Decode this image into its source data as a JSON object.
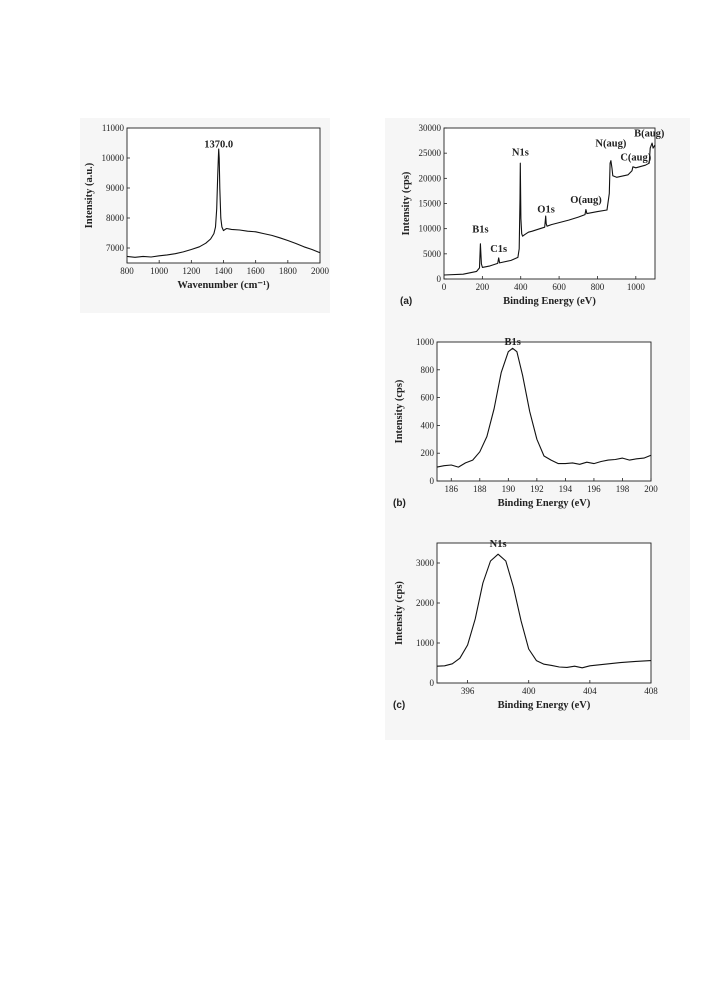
{
  "chart_data": [
    {
      "id": "raman",
      "type": "line",
      "title": "",
      "panel_label": "",
      "xlabel": "Wavenumber (cm⁻¹)",
      "ylabel": "Intensity (a.u.)",
      "xlim": [
        800,
        2000
      ],
      "ylim": [
        6500,
        11000
      ],
      "xticks": [
        800,
        1000,
        1200,
        1400,
        1600,
        1800,
        2000
      ],
      "yticks": [
        7000,
        8000,
        9000,
        10000,
        11000
      ],
      "grid": false,
      "annotations": [
        {
          "text": "1370.0",
          "x": 1370,
          "y": 10350
        }
      ],
      "series": [
        {
          "x": [
            800,
            850,
            900,
            950,
            1000,
            1050,
            1100,
            1150,
            1200,
            1250,
            1290,
            1320,
            1340,
            1350,
            1358,
            1364,
            1368,
            1370,
            1373,
            1377,
            1383,
            1390,
            1400,
            1410,
            1420,
            1450,
            1500,
            1550,
            1600,
            1650,
            1700,
            1750,
            1800,
            1850,
            1900,
            1950,
            2000
          ],
          "y": [
            6720,
            6690,
            6720,
            6700,
            6740,
            6770,
            6810,
            6870,
            6950,
            7040,
            7160,
            7300,
            7480,
            7700,
            8300,
            9400,
            10050,
            10300,
            10000,
            9000,
            8000,
            7700,
            7580,
            7620,
            7650,
            7620,
            7600,
            7560,
            7540,
            7480,
            7420,
            7340,
            7250,
            7150,
            7040,
            6950,
            6840
          ]
        }
      ]
    },
    {
      "id": "xps-survey",
      "type": "line",
      "title": "",
      "panel_label": "(a)",
      "xlabel": "Binding Energy (eV)",
      "ylabel": "Intensity (cps)",
      "xlim": [
        0,
        1100
      ],
      "ylim": [
        0,
        30000
      ],
      "xticks": [
        0,
        200,
        400,
        600,
        800,
        1000
      ],
      "yticks": [
        0,
        5000,
        10000,
        15000,
        20000,
        25000,
        30000
      ],
      "grid": false,
      "annotations": [
        {
          "text": "B1s",
          "x": 190,
          "y": 9200
        },
        {
          "text": "C1s",
          "x": 285,
          "y": 5400
        },
        {
          "text": "N1s",
          "x": 398,
          "y": 24500
        },
        {
          "text": "O1s",
          "x": 532,
          "y": 13200
        },
        {
          "text": "O(aug)",
          "x": 740,
          "y": 15100
        },
        {
          "text": "N(aug)",
          "x": 870,
          "y": 26300
        },
        {
          "text": "C(aug)",
          "x": 1000,
          "y": 23500
        },
        {
          "text": "B(aug)",
          "x": 1070,
          "y": 28300
        }
      ],
      "series": [
        {
          "x": [
            0,
            100,
            170,
            185,
            190,
            195,
            200,
            240,
            280,
            285,
            290,
            350,
            385,
            392,
            396,
            398,
            401,
            405,
            410,
            420,
            440,
            460,
            500,
            525,
            530,
            533,
            537,
            560,
            600,
            650,
            700,
            735,
            740,
            745,
            800,
            850,
            862,
            866,
            870,
            876,
            880,
            900,
            960,
            980,
            985,
            1000,
            1050,
            1070,
            1075,
            1085,
            1090,
            1100
          ],
          "y": [
            800,
            950,
            1500,
            2200,
            7000,
            3000,
            2300,
            2600,
            3100,
            4200,
            3200,
            3700,
            4300,
            6000,
            16000,
            23000,
            12000,
            9000,
            8500,
            8800,
            9300,
            9500,
            10000,
            10300,
            12500,
            11000,
            10500,
            10800,
            11200,
            11700,
            12300,
            12800,
            13800,
            13000,
            13400,
            13700,
            17000,
            23000,
            23500,
            22000,
            20500,
            20200,
            20700,
            21500,
            22300,
            22100,
            22600,
            23000,
            26000,
            27000,
            26000,
            26600
          ]
        }
      ]
    },
    {
      "id": "xps-b1s",
      "type": "line",
      "title": "",
      "panel_label": "(b)",
      "xlabel": "Binding Energy (eV)",
      "ylabel": "Intensity (cps)",
      "xlim": [
        185,
        200
      ],
      "ylim": [
        0,
        1000
      ],
      "xticks": [
        186,
        188,
        190,
        192,
        194,
        196,
        198,
        200
      ],
      "yticks": [
        0,
        200,
        400,
        600,
        800,
        1000
      ],
      "grid": false,
      "annotations": [
        {
          "text": "B1s",
          "x": 190.3,
          "y": 980
        }
      ],
      "series": [
        {
          "x": [
            185,
            185.5,
            186,
            186.5,
            187,
            187.5,
            188,
            188.5,
            189,
            189.5,
            190,
            190.3,
            190.6,
            191,
            191.5,
            192,
            192.5,
            193,
            193.5,
            194,
            194.5,
            195,
            195.5,
            196,
            196.5,
            197,
            197.5,
            198,
            198.5,
            199,
            199.5,
            200
          ],
          "y": [
            100,
            110,
            115,
            100,
            130,
            150,
            210,
            320,
            520,
            780,
            930,
            955,
            930,
            760,
            500,
            300,
            180,
            150,
            125,
            125,
            130,
            120,
            135,
            125,
            140,
            150,
            155,
            165,
            150,
            160,
            165,
            185
          ]
        }
      ]
    },
    {
      "id": "xps-n1s",
      "type": "line",
      "title": "",
      "panel_label": "(c)",
      "xlabel": "Binding Energy (eV)",
      "ylabel": "Intensity (cps)",
      "xlim": [
        394,
        408
      ],
      "ylim": [
        0,
        3500
      ],
      "xticks": [
        396,
        400,
        404,
        408
      ],
      "yticks": [
        0,
        1000,
        2000,
        3000
      ],
      "grid": false,
      "annotations": [
        {
          "text": "N1s",
          "x": 398,
          "y": 3400
        }
      ],
      "series": [
        {
          "x": [
            394,
            394.5,
            395,
            395.5,
            396,
            396.5,
            397,
            397.5,
            398,
            398.5,
            399,
            399.5,
            400,
            400.5,
            401,
            401.5,
            402,
            402.5,
            403,
            403.5,
            404,
            405,
            406,
            407,
            408
          ],
          "y": [
            420,
            430,
            480,
            620,
            950,
            1600,
            2500,
            3050,
            3220,
            3050,
            2400,
            1550,
            850,
            560,
            470,
            440,
            400,
            390,
            420,
            380,
            430,
            470,
            510,
            540,
            560
          ]
        }
      ]
    }
  ]
}
